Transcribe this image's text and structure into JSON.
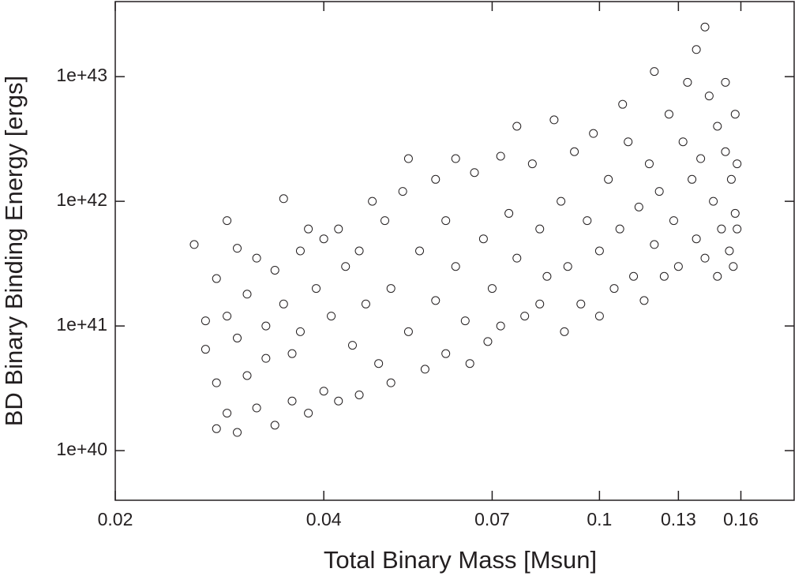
{
  "chart_data": {
    "type": "scatter",
    "x_label": "Total Binary Mass [Msun]",
    "y_label": "BD Binary Binding Energy [ergs]",
    "xscale": "log",
    "yscale": "log",
    "xlim": [
      0.02,
      0.191
    ],
    "ylim": [
      4e+39,
      4e+43
    ],
    "xticks": [
      0.02,
      0.04,
      0.07,
      0.1,
      0.13,
      0.16
    ],
    "yticks": [
      {
        "value": 1e+40,
        "label": "1e+40"
      },
      {
        "value": 1e+41,
        "label": "1e+41"
      },
      {
        "value": 1e+42,
        "label": "1e+42"
      },
      {
        "value": 1e+43,
        "label": "1e+43"
      }
    ],
    "marker": "open-circle",
    "color": "#231f20",
    "x": [
      0.026,
      0.027,
      0.027,
      0.028,
      0.028,
      0.028,
      0.029,
      0.029,
      0.029,
      0.03,
      0.03,
      0.03,
      0.031,
      0.031,
      0.032,
      0.032,
      0.033,
      0.033,
      0.034,
      0.034,
      0.035,
      0.035,
      0.036,
      0.036,
      0.037,
      0.037,
      0.038,
      0.038,
      0.039,
      0.04,
      0.04,
      0.041,
      0.042,
      0.042,
      0.043,
      0.044,
      0.045,
      0.045,
      0.046,
      0.047,
      0.048,
      0.049,
      0.05,
      0.05,
      0.052,
      0.053,
      0.053,
      0.055,
      0.056,
      0.058,
      0.058,
      0.06,
      0.06,
      0.062,
      0.062,
      0.064,
      0.065,
      0.066,
      0.068,
      0.069,
      0.07,
      0.072,
      0.072,
      0.074,
      0.076,
      0.076,
      0.078,
      0.08,
      0.082,
      0.082,
      0.084,
      0.086,
      0.088,
      0.089,
      0.09,
      0.092,
      0.094,
      0.096,
      0.098,
      0.1,
      0.1,
      0.103,
      0.105,
      0.107,
      0.108,
      0.11,
      0.112,
      0.114,
      0.116,
      0.118,
      0.12,
      0.12,
      0.122,
      0.124,
      0.126,
      0.128,
      0.13,
      0.132,
      0.134,
      0.136,
      0.138,
      0.138,
      0.14,
      0.142,
      0.142,
      0.144,
      0.146,
      0.148,
      0.148,
      0.15,
      0.152,
      0.152,
      0.154,
      0.155,
      0.156,
      0.157,
      0.157,
      0.158,
      0.158
    ],
    "values": [
      4.5e+41,
      1.1e+41,
      6.5e+40,
      2.4e+41,
      3.5e+40,
      1.5e+40,
      7e+41,
      1.2e+41,
      2e+40,
      4.2e+41,
      8e+40,
      1.4e+40,
      1.8e+41,
      4e+40,
      3.5e+41,
      2.2e+40,
      1e+41,
      5.5e+40,
      2.8e+41,
      1.6e+40,
      1.05e+42,
      1.5e+41,
      6e+40,
      2.5e+40,
      4e+41,
      9e+40,
      6e+41,
      2e+40,
      2e+41,
      5e+41,
      3e+40,
      1.2e+41,
      6e+41,
      2.5e+40,
      3e+41,
      7e+40,
      4e+41,
      2.8e+40,
      1.5e+41,
      1e+42,
      5e+40,
      7e+41,
      2e+41,
      3.5e+40,
      1.2e+42,
      2.2e+42,
      9e+40,
      4e+41,
      4.5e+40,
      1.5e+42,
      1.6e+41,
      7e+41,
      6e+40,
      2.2e+42,
      3e+41,
      1.1e+41,
      5e+40,
      1.7e+42,
      5e+41,
      7.5e+40,
      2e+41,
      2.3e+42,
      1e+41,
      8e+41,
      4e+42,
      3.5e+41,
      1.2e+41,
      2e+42,
      6e+41,
      1.5e+41,
      2.5e+41,
      4.5e+42,
      1e+42,
      9e+40,
      3e+41,
      2.5e+42,
      1.5e+41,
      7e+41,
      3.5e+42,
      4e+41,
      1.2e+41,
      1.5e+42,
      2e+41,
      6e+41,
      6e+42,
      3e+42,
      2.5e+41,
      9e+41,
      1.6e+41,
      2e+42,
      1.1e+43,
      4.5e+41,
      1.2e+42,
      2.5e+41,
      5e+42,
      7e+41,
      3e+41,
      3e+42,
      9e+42,
      1.5e+42,
      1.65e+43,
      5e+41,
      2.2e+42,
      2.5e+43,
      3.5e+41,
      7e+42,
      1e+42,
      4e+42,
      2.5e+41,
      6e+41,
      9e+42,
      2.5e+42,
      4e+41,
      1.5e+42,
      3e+41,
      5e+42,
      8e+41,
      2e+42,
      6e+41
    ]
  }
}
